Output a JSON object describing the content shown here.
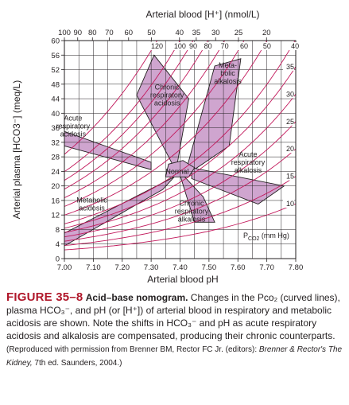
{
  "chart_data": {
    "type": "area",
    "xlabel": "Arterial blood pH",
    "ylabel": "Arterial plasma [HCO3⁻] (meq/L)",
    "top_axis_label": "Arterial blood [H⁺] (nmol/L)",
    "xlim": [
      7.0,
      7.8
    ],
    "ylim": [
      0,
      60
    ],
    "x_ticks": [
      "7.00",
      "7.10",
      "7.20",
      "7.30",
      "7.40",
      "7.50",
      "7.60",
      "7.70",
      "7.80"
    ],
    "y_ticks": [
      "0",
      "4",
      "8",
      "12",
      "16",
      "20",
      "24",
      "28",
      "32",
      "36",
      "40",
      "44",
      "48",
      "52",
      "56",
      "60"
    ],
    "top_ticks": [
      {
        "label": "100",
        "ph": 7.0
      },
      {
        "label": "90",
        "ph": 7.046
      },
      {
        "label": "80",
        "ph": 7.097
      },
      {
        "label": "70",
        "ph": 7.155
      },
      {
        "label": "60",
        "ph": 7.222
      },
      {
        "label": "50",
        "ph": 7.301
      },
      {
        "label": "40",
        "ph": 7.398
      },
      {
        "label": "35",
        "ph": 7.456
      },
      {
        "label": "30",
        "ph": 7.523
      },
      {
        "label": "25",
        "ph": 7.602
      },
      {
        "label": "20",
        "ph": 7.699
      }
    ],
    "grid": true,
    "isobar_unit_label": "P",
    "isobar_unit_sub": "CO2",
    "isobar_unit_suffix": " (mm Hg)",
    "isobars": [
      {
        "pco2": 120,
        "label": "120"
      },
      {
        "pco2": 100,
        "label": "100"
      },
      {
        "pco2": 90,
        "label": "90"
      },
      {
        "pco2": 80,
        "label": "80"
      },
      {
        "pco2": 70,
        "label": "70"
      },
      {
        "pco2": 60,
        "label": "60"
      },
      {
        "pco2": 50,
        "label": "50"
      },
      {
        "pco2": 40,
        "label": "40"
      },
      {
        "pco2": 35,
        "label": "35"
      },
      {
        "pco2": 30,
        "label": "30"
      },
      {
        "pco2": 25,
        "label": "25"
      },
      {
        "pco2": 20,
        "label": "20"
      },
      {
        "pco2": 15,
        "label": "15"
      },
      {
        "pco2": 10,
        "label": "10"
      }
    ],
    "regions": [
      {
        "name": "Acute respiratory acidosis",
        "label": [
          "Acute",
          "respiratory",
          "acidosis"
        ],
        "label_at": [
          7.03,
          36.5
        ],
        "points": [
          [
            7.0,
            31
          ],
          [
            7.3,
            24.5
          ],
          [
            7.3,
            26.5
          ],
          [
            7.0,
            35
          ]
        ]
      },
      {
        "name": "Chronic respiratory acidosis",
        "label": [
          "Chronic",
          "respiratory",
          "acidosis"
        ],
        "label_at": [
          7.355,
          45
        ],
        "points": [
          [
            7.38,
            25
          ],
          [
            7.25,
            45
          ],
          [
            7.31,
            56
          ],
          [
            7.43,
            44
          ],
          [
            7.39,
            26
          ]
        ]
      },
      {
        "name": "Metabolic alkalosis",
        "label": [
          "Meta-",
          "bolic",
          "alkalosis"
        ],
        "label_at": [
          7.565,
          51
        ],
        "points": [
          [
            7.42,
            24
          ],
          [
            7.52,
            53
          ],
          [
            7.61,
            55
          ],
          [
            7.57,
            31
          ],
          [
            7.44,
            24
          ]
        ]
      },
      {
        "name": "Acute respiratory alkalosis",
        "label": [
          "Acute",
          "respiratory",
          "alkalosis"
        ],
        "label_at": [
          7.635,
          26.5
        ],
        "points": [
          [
            7.44,
            25
          ],
          [
            7.76,
            20
          ],
          [
            7.67,
            15
          ],
          [
            7.44,
            22
          ]
        ]
      },
      {
        "name": "Chronic respiratory alkalosis",
        "label": [
          "Chronic",
          "respiratory",
          "alkalosis"
        ],
        "label_at": [
          7.44,
          13
        ],
        "points": [
          [
            7.4,
            23
          ],
          [
            7.45,
            10
          ],
          [
            7.52,
            10
          ],
          [
            7.48,
            17
          ],
          [
            7.41,
            23
          ]
        ]
      },
      {
        "name": "Metabolic acidosis",
        "label": [
          "Metabolic",
          "acidosis"
        ],
        "label_at": [
          7.095,
          15
        ],
        "points": [
          [
            7.0,
            3.5
          ],
          [
            7.34,
            19
          ],
          [
            7.38,
            22.5
          ],
          [
            7.0,
            7
          ]
        ]
      },
      {
        "name": "Normal",
        "label": [
          "Normal"
        ],
        "label_at": [
          7.39,
          24
        ],
        "points": [
          [
            7.35,
            22.5
          ],
          [
            7.43,
            22.5
          ],
          [
            7.45,
            25
          ],
          [
            7.41,
            27
          ],
          [
            7.36,
            26
          ]
        ]
      }
    ],
    "colors": {
      "fill": "#cfa5cf",
      "outline": "#231f20",
      "isobar": "#c2185b",
      "grid": "#231f20"
    }
  },
  "caption": {
    "figure_number": "FIGURE 35–8",
    "title": "Acid–base nomogram.",
    "body": "Changes in the Pco₂ (curved lines), plasma HCO₃⁻, and pH (or [H⁺]) of arterial blood in respiratory and metabolic acidosis are shown. Note the shifts in HCO₃⁻ and pH as acute respiratory acidosis and alkalosis are compensated, producing their chronic counterparts.",
    "source_prefix": "(Reproduced with permission from Brenner BM, Rector FC Jr. (editors): ",
    "source_journal": "Brenner & Rector's The Kidney,",
    "source_suffix": " 7th ed. Saunders, 2004.)"
  }
}
